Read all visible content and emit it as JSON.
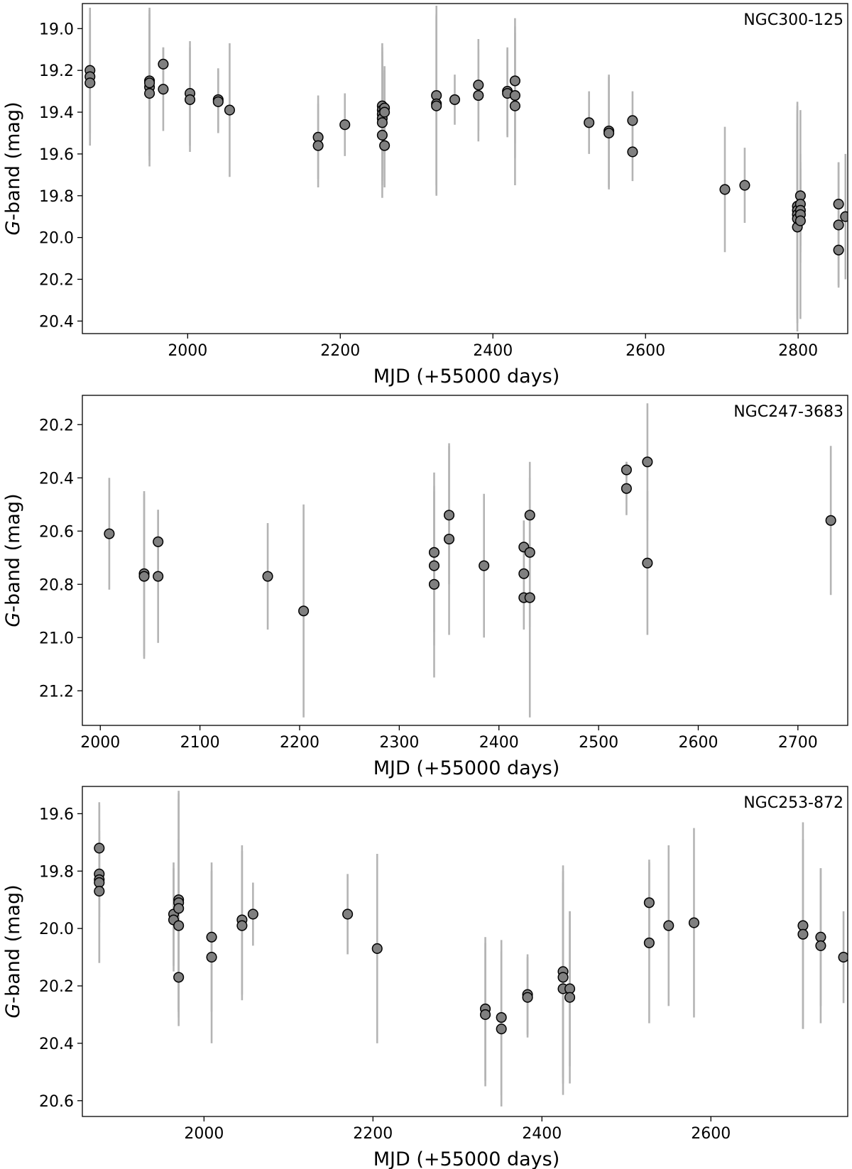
{
  "chart_data": [
    {
      "type": "scatter",
      "title": "NGC300-125",
      "xlabel": "MJD (+55000 days)",
      "ylabel_italic": "G",
      "ylabel_rest": "-band (mag)",
      "xlim": [
        1862,
        2865
      ],
      "ylim": [
        20.46,
        18.88
      ],
      "y_inverted": true,
      "xticks": [
        2000,
        2200,
        2400,
        2600,
        2800
      ],
      "xtick_labels": [
        "2000",
        "2200",
        "2400",
        "2600",
        "2800"
      ],
      "yticks": [
        19.0,
        19.2,
        19.4,
        19.6,
        19.8,
        20.0,
        20.2,
        20.4
      ],
      "ytick_labels": [
        "19.0",
        "19.2",
        "19.4",
        "19.6",
        "19.8",
        "20.0",
        "20.2",
        "20.4"
      ],
      "marker_color": "#808080",
      "errorbar_color": "#b4b4b4",
      "points": [
        {
          "x": 1872,
          "y": 19.2,
          "err": 0.3
        },
        {
          "x": 1872,
          "y": 19.23,
          "err": 0.3
        },
        {
          "x": 1872,
          "y": 19.26,
          "err": 0.3
        },
        {
          "x": 1950,
          "y": 19.25,
          "err": 0.35
        },
        {
          "x": 1950,
          "y": 19.28,
          "err": 0.35
        },
        {
          "x": 1950,
          "y": 19.31,
          "err": 0.35
        },
        {
          "x": 1950,
          "y": 19.26,
          "err": 0.35
        },
        {
          "x": 1968,
          "y": 19.17,
          "err": 0.08
        },
        {
          "x": 1968,
          "y": 19.29,
          "err": 0.2
        },
        {
          "x": 2003,
          "y": 19.31,
          "err": 0.25
        },
        {
          "x": 2003,
          "y": 19.34,
          "err": 0.25
        },
        {
          "x": 2040,
          "y": 19.34,
          "err": 0.15
        },
        {
          "x": 2040,
          "y": 19.35,
          "err": 0.15
        },
        {
          "x": 2055,
          "y": 19.39,
          "err": 0.32
        },
        {
          "x": 2171,
          "y": 19.52,
          "err": 0.2
        },
        {
          "x": 2171,
          "y": 19.56,
          "err": 0.2
        },
        {
          "x": 2206,
          "y": 19.46,
          "err": 0.15
        },
        {
          "x": 2255,
          "y": 19.37,
          "err": 0.3
        },
        {
          "x": 2255,
          "y": 19.39,
          "err": 0.3
        },
        {
          "x": 2255,
          "y": 19.41,
          "err": 0.3
        },
        {
          "x": 2255,
          "y": 19.43,
          "err": 0.3
        },
        {
          "x": 2255,
          "y": 19.45,
          "err": 0.3
        },
        {
          "x": 2255,
          "y": 19.51,
          "err": 0.3
        },
        {
          "x": 2258,
          "y": 19.38,
          "err": 0.2
        },
        {
          "x": 2258,
          "y": 19.4,
          "err": 0.2
        },
        {
          "x": 2258,
          "y": 19.56,
          "err": 0.2
        },
        {
          "x": 2326,
          "y": 19.32,
          "err": 0.43
        },
        {
          "x": 2326,
          "y": 19.36,
          "err": 0.43
        },
        {
          "x": 2326,
          "y": 19.37,
          "err": 0.43
        },
        {
          "x": 2350,
          "y": 19.34,
          "err": 0.12
        },
        {
          "x": 2381,
          "y": 19.27,
          "err": 0.22
        },
        {
          "x": 2381,
          "y": 19.32,
          "err": 0.22
        },
        {
          "x": 2419,
          "y": 19.3,
          "err": 0.21
        },
        {
          "x": 2419,
          "y": 19.31,
          "err": 0.21
        },
        {
          "x": 2429,
          "y": 19.25,
          "err": 0.3
        },
        {
          "x": 2429,
          "y": 19.32,
          "err": 0.3
        },
        {
          "x": 2429,
          "y": 19.37,
          "err": 0.38
        },
        {
          "x": 2526,
          "y": 19.45,
          "err": 0.15
        },
        {
          "x": 2552,
          "y": 19.49,
          "err": 0.27
        },
        {
          "x": 2552,
          "y": 19.5,
          "err": 0.27
        },
        {
          "x": 2583,
          "y": 19.44,
          "err": 0.14
        },
        {
          "x": 2583,
          "y": 19.59,
          "err": 0.14
        },
        {
          "x": 2704,
          "y": 19.77,
          "err": 0.3
        },
        {
          "x": 2730,
          "y": 19.75,
          "err": 0.18
        },
        {
          "x": 2799,
          "y": 19.85,
          "err": 0.5
        },
        {
          "x": 2799,
          "y": 19.87,
          "err": 0.5
        },
        {
          "x": 2799,
          "y": 19.89,
          "err": 0.5
        },
        {
          "x": 2799,
          "y": 19.95,
          "err": 0.5
        },
        {
          "x": 2799,
          "y": 19.91,
          "err": 0.5
        },
        {
          "x": 2803,
          "y": 19.8,
          "err": 0.2
        },
        {
          "x": 2803,
          "y": 19.84,
          "err": 0.2
        },
        {
          "x": 2803,
          "y": 19.87,
          "err": 0.2
        },
        {
          "x": 2803,
          "y": 19.89,
          "err": 0.5
        },
        {
          "x": 2803,
          "y": 19.92,
          "err": 0.2
        },
        {
          "x": 2853,
          "y": 19.84,
          "err": 0.2
        },
        {
          "x": 2853,
          "y": 19.94,
          "err": 0.3
        },
        {
          "x": 2853,
          "y": 20.06,
          "err": 0.17
        },
        {
          "x": 2862,
          "y": 19.9,
          "err": 0.3
        }
      ]
    },
    {
      "type": "scatter",
      "title": "NGC247-3683",
      "xlabel": "MJD (+55000 days)",
      "ylabel_italic": "G",
      "ylabel_rest": "-band (mag)",
      "xlim": [
        1982,
        2750
      ],
      "ylim": [
        21.33,
        20.09
      ],
      "y_inverted": true,
      "xticks": [
        2000,
        2100,
        2200,
        2300,
        2400,
        2500,
        2600,
        2700
      ],
      "xtick_labels": [
        "2000",
        "2100",
        "2200",
        "2300",
        "2400",
        "2500",
        "2600",
        "2700"
      ],
      "yticks": [
        20.2,
        20.4,
        20.6,
        20.8,
        21.0,
        21.2
      ],
      "ytick_labels": [
        "20.2",
        "20.4",
        "20.6",
        "20.8",
        "21.0",
        "21.2"
      ],
      "marker_color": "#808080",
      "errorbar_color": "#b4b4b4",
      "points": [
        {
          "x": 2009,
          "y": 20.61,
          "err": 0.21
        },
        {
          "x": 2044,
          "y": 20.76,
          "err": 0.31
        },
        {
          "x": 2044,
          "y": 20.77,
          "err": 0.31
        },
        {
          "x": 2058,
          "y": 20.64,
          "err": 0.12
        },
        {
          "x": 2058,
          "y": 20.77,
          "err": 0.25
        },
        {
          "x": 2168,
          "y": 20.77,
          "err": 0.2
        },
        {
          "x": 2204,
          "y": 20.9,
          "err": 0.4
        },
        {
          "x": 2335,
          "y": 20.68,
          "err": 0.3
        },
        {
          "x": 2335,
          "y": 20.73,
          "err": 0.3
        },
        {
          "x": 2335,
          "y": 20.8,
          "err": 0.35
        },
        {
          "x": 2350,
          "y": 20.54,
          "err": 0.26
        },
        {
          "x": 2350,
          "y": 20.63,
          "err": 0.36
        },
        {
          "x": 2385,
          "y": 20.73,
          "err": 0.27
        },
        {
          "x": 2425,
          "y": 20.66,
          "err": 0.1
        },
        {
          "x": 2425,
          "y": 20.76,
          "err": 0.1
        },
        {
          "x": 2425,
          "y": 20.85,
          "err": 0.12
        },
        {
          "x": 2431,
          "y": 20.54,
          "err": 0.2
        },
        {
          "x": 2431,
          "y": 20.68,
          "err": 0.28
        },
        {
          "x": 2431,
          "y": 20.85,
          "err": 0.45
        },
        {
          "x": 2528,
          "y": 20.37,
          "err": 0.03
        },
        {
          "x": 2528,
          "y": 20.44,
          "err": 0.1
        },
        {
          "x": 2549,
          "y": 20.34,
          "err": 0.22
        },
        {
          "x": 2549,
          "y": 20.72,
          "err": 0.27
        },
        {
          "x": 2733,
          "y": 20.56,
          "err": 0.28
        }
      ]
    },
    {
      "type": "scatter",
      "title": "NGC253-872",
      "xlabel": "MJD (+55000 days)",
      "ylabel_italic": "G",
      "ylabel_rest": "-band (mag)",
      "xlim": [
        1856,
        2762
      ],
      "ylim": [
        20.655,
        19.505
      ],
      "y_inverted": true,
      "xticks": [
        2000,
        2200,
        2400,
        2600
      ],
      "xtick_labels": [
        "2000",
        "2200",
        "2400",
        "2600"
      ],
      "yticks": [
        19.6,
        19.8,
        20.0,
        20.2,
        20.4,
        20.6
      ],
      "ytick_labels": [
        "19.6",
        "19.8",
        "20.0",
        "20.2",
        "20.4",
        "20.6"
      ],
      "marker_color": "#808080",
      "errorbar_color": "#b4b4b4",
      "points": [
        {
          "x": 1876,
          "y": 19.72,
          "err": 0.15
        },
        {
          "x": 1876,
          "y": 19.81,
          "err": 0.15
        },
        {
          "x": 1876,
          "y": 19.83,
          "err": 0.15
        },
        {
          "x": 1876,
          "y": 19.84,
          "err": 0.28
        },
        {
          "x": 1876,
          "y": 19.87,
          "err": 0.25
        },
        {
          "x": 1964,
          "y": 19.95,
          "err": 0.18
        },
        {
          "x": 1964,
          "y": 19.97,
          "err": 0.18
        },
        {
          "x": 1970,
          "y": 19.9,
          "err": 0.38
        },
        {
          "x": 1970,
          "y": 19.91,
          "err": 0.38
        },
        {
          "x": 1970,
          "y": 19.93,
          "err": 0.38
        },
        {
          "x": 1970,
          "y": 19.99,
          "err": 0.3
        },
        {
          "x": 1970,
          "y": 20.17,
          "err": 0.17
        },
        {
          "x": 2009,
          "y": 20.03,
          "err": 0.26
        },
        {
          "x": 2009,
          "y": 20.1,
          "err": 0.3
        },
        {
          "x": 2045,
          "y": 19.97,
          "err": 0.26
        },
        {
          "x": 2045,
          "y": 19.99,
          "err": 0.26
        },
        {
          "x": 2058,
          "y": 19.95,
          "err": 0.11
        },
        {
          "x": 2170,
          "y": 19.95,
          "err": 0.14
        },
        {
          "x": 2205,
          "y": 20.07,
          "err": 0.33
        },
        {
          "x": 2333,
          "y": 20.28,
          "err": 0.25
        },
        {
          "x": 2333,
          "y": 20.3,
          "err": 0.25
        },
        {
          "x": 2352,
          "y": 20.31,
          "err": 0.27
        },
        {
          "x": 2352,
          "y": 20.35,
          "err": 0.27
        },
        {
          "x": 2383,
          "y": 20.23,
          "err": 0.14
        },
        {
          "x": 2383,
          "y": 20.24,
          "err": 0.14
        },
        {
          "x": 2425,
          "y": 20.15,
          "err": 0.37
        },
        {
          "x": 2425,
          "y": 20.17,
          "err": 0.37
        },
        {
          "x": 2425,
          "y": 20.21,
          "err": 0.37
        },
        {
          "x": 2433,
          "y": 20.21,
          "err": 0.27
        },
        {
          "x": 2433,
          "y": 20.24,
          "err": 0.3
        },
        {
          "x": 2527,
          "y": 19.91,
          "err": 0.15
        },
        {
          "x": 2527,
          "y": 20.05,
          "err": 0.28
        },
        {
          "x": 2550,
          "y": 19.99,
          "err": 0.28
        },
        {
          "x": 2580,
          "y": 19.98,
          "err": 0.33
        },
        {
          "x": 2709,
          "y": 19.99,
          "err": 0.36
        },
        {
          "x": 2709,
          "y": 20.02,
          "err": 0.33
        },
        {
          "x": 2730,
          "y": 20.03,
          "err": 0.24
        },
        {
          "x": 2730,
          "y": 20.06,
          "err": 0.27
        },
        {
          "x": 2757,
          "y": 20.1,
          "err": 0.16
        }
      ]
    }
  ]
}
